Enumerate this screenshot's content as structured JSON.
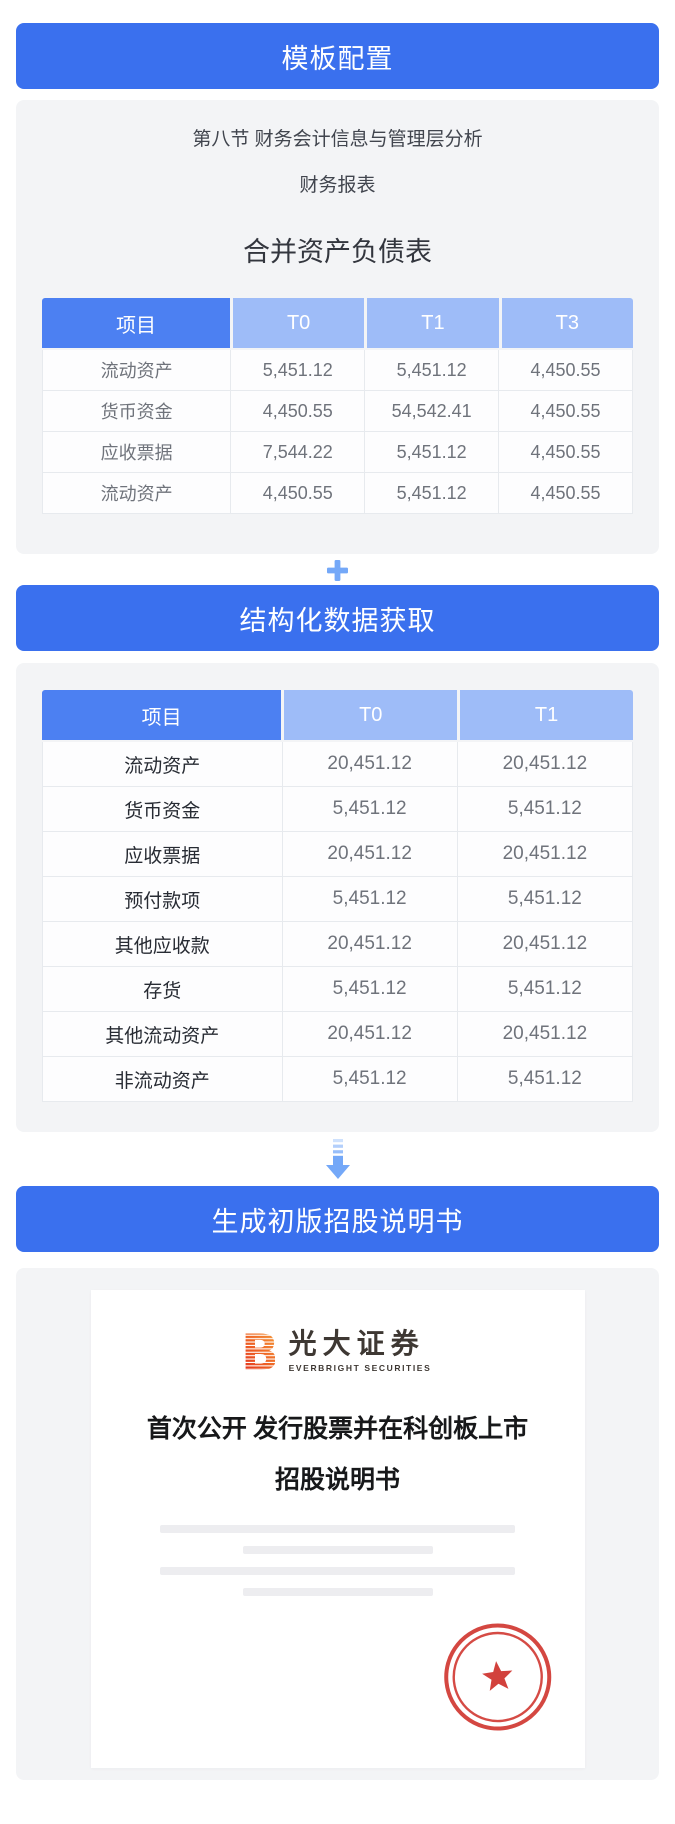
{
  "headers": {
    "template_config": "模板配置",
    "structured_data": "结构化数据获取",
    "generate_prospectus": "生成初版招股说明书"
  },
  "template_card": {
    "section_line": "第八节 财务会计信息与管理层分析",
    "subsection_line": "财务报表",
    "table_title": "合并资产负债表",
    "table": {
      "columns": [
        "项目",
        "T0",
        "T1",
        "T3"
      ],
      "rows": [
        [
          "流动资产",
          "5,451.12",
          "5,451.12",
          "4,450.55"
        ],
        [
          "货币资金",
          "4,450.55",
          "54,542.41",
          "4,450.55"
        ],
        [
          "应收票据",
          "7,544.22",
          "5,451.12",
          "4,450.55"
        ],
        [
          "流动资产",
          "4,450.55",
          "5,451.12",
          "4,450.55"
        ]
      ]
    }
  },
  "structured_card": {
    "table": {
      "columns": [
        "项目",
        "T0",
        "T1"
      ],
      "rows": [
        [
          "流动资产",
          "20,451.12",
          "20,451.12"
        ],
        [
          "货币资金",
          "5,451.12",
          "5,451.12"
        ],
        [
          "应收票据",
          "20,451.12",
          "20,451.12"
        ],
        [
          "预付款项",
          "5,451.12",
          "5,451.12"
        ],
        [
          "其他应收款",
          "20,451.12",
          "20,451.12"
        ],
        [
          "存货",
          "5,451.12",
          "5,451.12"
        ],
        [
          "其他流动资产",
          "20,451.12",
          "20,451.12"
        ],
        [
          "非流动资产",
          "5,451.12",
          "5,451.12"
        ]
      ]
    }
  },
  "prospectus_card": {
    "brand": {
      "logo_letter": "B",
      "name": "光大证券",
      "subtitle": "EVERBRIGHT SECURITIES"
    },
    "doc_title_line1": "首次公开 发行股票并在科创板上市",
    "doc_title_line2": "招股说明书"
  },
  "colors": {
    "banner_blue": "#3a70ee",
    "table_head_dark": "#4c80f2",
    "table_head_light": "#9ebcf8",
    "connector_blue": "#74a8f8",
    "seal_red": "#d03731",
    "logo_orange": "#f6a13c",
    "logo_red": "#e1251b"
  }
}
